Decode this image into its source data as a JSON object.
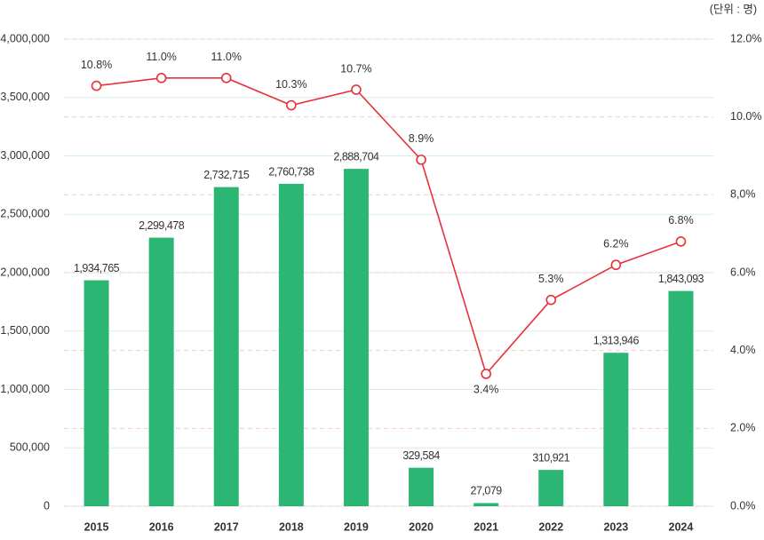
{
  "chart_data": {
    "type": "bar-line",
    "unit_note": "(단위 : 명)",
    "categories": [
      "2015",
      "2016",
      "2017",
      "2018",
      "2019",
      "2020",
      "2021",
      "2022",
      "2023",
      "2024"
    ],
    "series": [
      {
        "type": "bar",
        "color": "#2bb673",
        "values": [
          1934765,
          2299478,
          2732715,
          2760738,
          2888704,
          329584,
          27079,
          310921,
          1313946,
          1843093
        ],
        "value_labels": [
          "1,934,765",
          "2,299,478",
          "2,732,715",
          "2,760,738",
          "2,888,704",
          "329,584",
          "27,079",
          "310,921",
          "1,313,946",
          "1,843,093"
        ],
        "label_color": "#1e9a5c"
      },
      {
        "type": "line",
        "axis": "y2",
        "color": "#e8303a",
        "values": [
          10.8,
          11.0,
          11.0,
          10.3,
          10.7,
          8.9,
          3.4,
          5.3,
          6.2,
          6.8
        ],
        "value_labels": [
          "10.8%",
          "11.0%",
          "11.0%",
          "10.3%",
          "10.7%",
          "8.9%",
          "3.4%",
          "5.3%",
          "6.2%",
          "6.8%"
        ]
      }
    ],
    "ylim": [
      0,
      4000000
    ],
    "yticks": [
      0,
      {
        "value": 500000,
        "label": "500,000"
      },
      {
        "value": 1000000,
        "label": "1,000,000"
      },
      {
        "value": 1500000,
        "label": "1,500,000"
      },
      {
        "value": 2000000,
        "label": "2,000,000"
      },
      {
        "value": 2500000,
        "label": "2,500,000"
      },
      {
        "value": 3000000,
        "label": "3,000,000"
      },
      {
        "value": 3500000,
        "label": "3,500,000"
      },
      {
        "value": 4000000,
        "label": "4,000,000"
      }
    ],
    "y2lim": [
      0,
      12
    ],
    "y2ticks": [
      {
        "value": 0,
        "label": "0.0%"
      },
      {
        "value": 2,
        "label": "2.0%"
      },
      {
        "value": 4,
        "label": "4.0%"
      },
      {
        "value": 6,
        "label": "6.0%"
      },
      {
        "value": 8,
        "label": "8,0%"
      },
      {
        "value": 10,
        "label": "10.0%"
      },
      {
        "value": 12,
        "label": "12.0%"
      }
    ],
    "grid": true
  }
}
